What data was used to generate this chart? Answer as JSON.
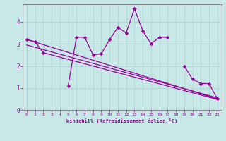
{
  "xlabel": "Windchill (Refroidissement éolien,°C)",
  "bg_color": "#c8e8e8",
  "line_color": "#990099",
  "grid_color": "#b0d4d4",
  "x_data": [
    0,
    1,
    2,
    3,
    4,
    5,
    6,
    7,
    8,
    9,
    10,
    11,
    12,
    13,
    14,
    15,
    16,
    17,
    18,
    19,
    20,
    21,
    22,
    23
  ],
  "y_main": [
    3.2,
    3.1,
    2.6,
    null,
    null,
    1.1,
    3.3,
    3.3,
    2.5,
    2.55,
    3.2,
    3.75,
    3.5,
    4.6,
    3.6,
    3.0,
    3.3,
    3.3,
    null,
    2.0,
    1.4,
    1.2,
    1.2,
    0.5
  ],
  "y_line1_x": [
    0,
    23
  ],
  "y_line1_y": [
    3.2,
    0.5
  ],
  "y_line2_x": [
    0,
    23
  ],
  "y_line2_y": [
    2.95,
    0.55
  ],
  "y_line3_x": [
    2,
    23
  ],
  "y_line3_y": [
    2.6,
    0.48
  ],
  "ylim": [
    0,
    4.8
  ],
  "xlim": [
    -0.5,
    23.5
  ],
  "yticks": [
    0,
    1,
    2,
    3,
    4
  ],
  "xticks": [
    0,
    1,
    2,
    3,
    4,
    5,
    6,
    7,
    8,
    9,
    10,
    11,
    12,
    13,
    14,
    15,
    16,
    17,
    18,
    19,
    20,
    21,
    22,
    23
  ]
}
